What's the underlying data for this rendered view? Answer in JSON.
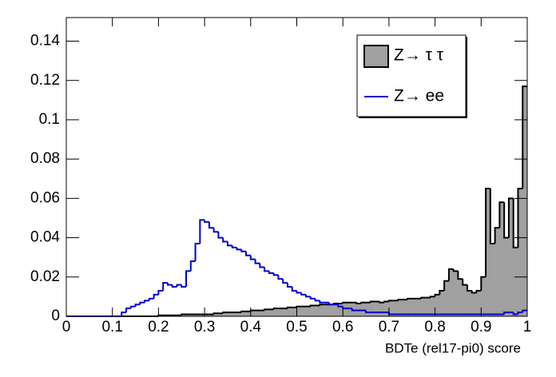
{
  "chart_data": {
    "type": "histogram",
    "x_label": "BDTe (rel17-pi0) score",
    "bins": [
      0,
      0.01,
      0.02,
      0.03,
      0.04,
      0.05,
      0.06,
      0.07,
      0.08,
      0.09,
      0.1,
      0.11,
      0.12,
      0.13,
      0.14,
      0.15,
      0.16,
      0.17,
      0.18,
      0.19,
      0.2,
      0.21,
      0.22,
      0.23,
      0.24,
      0.25,
      0.26,
      0.27,
      0.28,
      0.29,
      0.3,
      0.31,
      0.32,
      0.33,
      0.34,
      0.35,
      0.36,
      0.37,
      0.38,
      0.39,
      0.4,
      0.41,
      0.42,
      0.43,
      0.44,
      0.45,
      0.46,
      0.47,
      0.48,
      0.49,
      0.5,
      0.51,
      0.52,
      0.53,
      0.54,
      0.55,
      0.56,
      0.57,
      0.58,
      0.59,
      0.6,
      0.61,
      0.62,
      0.63,
      0.64,
      0.65,
      0.66,
      0.67,
      0.68,
      0.69,
      0.7,
      0.71,
      0.72,
      0.73,
      0.74,
      0.75,
      0.76,
      0.77,
      0.78,
      0.79,
      0.8,
      0.81,
      0.82,
      0.83,
      0.84,
      0.85,
      0.86,
      0.87,
      0.88,
      0.89,
      0.9,
      0.91,
      0.92,
      0.93,
      0.94,
      0.95,
      0.96,
      0.97,
      0.98,
      0.99,
      1
    ],
    "series": [
      {
        "name": "Z→ τ τ",
        "style": "filled",
        "color": "#a0a0a0",
        "edge": "#000000",
        "values": [
          0,
          0,
          0,
          0,
          0,
          0,
          0,
          0,
          0,
          0,
          0,
          0,
          0,
          0,
          0,
          0,
          0,
          0,
          0,
          0,
          0.0005,
          0.0005,
          0.0005,
          0.0005,
          0.0005,
          0.001,
          0.001,
          0.001,
          0.001,
          0.001,
          0.001,
          0.001,
          0.0015,
          0.0015,
          0.002,
          0.002,
          0.002,
          0.002,
          0.0025,
          0.0025,
          0.003,
          0.003,
          0.003,
          0.0035,
          0.0035,
          0.004,
          0.004,
          0.004,
          0.0045,
          0.0045,
          0.005,
          0.005,
          0.005,
          0.0055,
          0.0055,
          0.006,
          0.006,
          0.006,
          0.0065,
          0.0065,
          0.007,
          0.007,
          0.007,
          0.0065,
          0.007,
          0.007,
          0.0075,
          0.0075,
          0.007,
          0.0075,
          0.008,
          0.008,
          0.0085,
          0.0085,
          0.009,
          0.009,
          0.009,
          0.0095,
          0.0095,
          0.01,
          0.011,
          0.013,
          0.018,
          0.024,
          0.023,
          0.019,
          0.016,
          0.013,
          0.012,
          0.013,
          0.02,
          0.065,
          0.037,
          0.045,
          0.058,
          0.04,
          0.06,
          0.035,
          0.065,
          0.117
        ]
      },
      {
        "name": "Z→ ee",
        "style": "line",
        "color": "#0000cc",
        "values": [
          0,
          0,
          0,
          0,
          0,
          0,
          0,
          0,
          0,
          0,
          0,
          0,
          0.002,
          0.004,
          0.005,
          0.006,
          0.007,
          0.008,
          0.009,
          0.011,
          0.013,
          0.017,
          0.016,
          0.015,
          0.016,
          0.015,
          0.023,
          0.028,
          0.037,
          0.049,
          0.048,
          0.045,
          0.043,
          0.04,
          0.038,
          0.036,
          0.035,
          0.034,
          0.033,
          0.031,
          0.029,
          0.027,
          0.025,
          0.023,
          0.022,
          0.021,
          0.019,
          0.017,
          0.015,
          0.013,
          0.012,
          0.011,
          0.01,
          0.009,
          0.008,
          0.007,
          0.007,
          0.006,
          0.006,
          0.005,
          0.004,
          0.004,
          0.003,
          0.003,
          0.003,
          0.002,
          0.002,
          0.002,
          0.002,
          0.002,
          0.001,
          0.001,
          0.001,
          0.001,
          0.001,
          0.001,
          0.001,
          0.001,
          0.001,
          0.001,
          0.001,
          0.001,
          0.001,
          0.001,
          0.001,
          0.001,
          0.001,
          0.001,
          0.001,
          0.001,
          0.001,
          0.001,
          0.001,
          0.001,
          0.001,
          0.002,
          0.002,
          0.001,
          0.002,
          0.003
        ]
      }
    ],
    "xlim": [
      0,
      1
    ],
    "ylim": [
      0,
      0.152
    ],
    "xticks": [
      0,
      0.1,
      0.2,
      0.3,
      0.4,
      0.5,
      0.6,
      0.7,
      0.8,
      0.9,
      1
    ],
    "yticks": [
      0,
      0.02,
      0.04,
      0.06,
      0.08,
      0.1,
      0.12,
      0.14
    ],
    "legend": "top-right"
  }
}
